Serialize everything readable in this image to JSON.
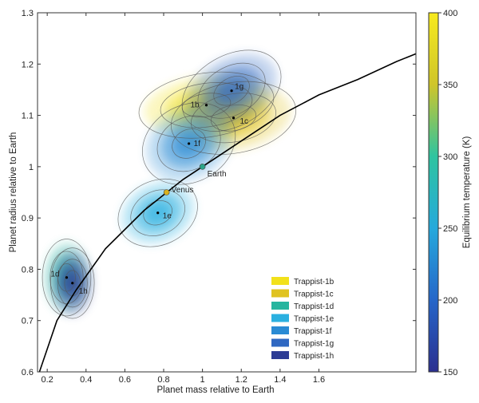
{
  "chart_data": {
    "type": "scatter",
    "xlabel": "Planet mass relative to Earth",
    "ylabel": "Planet radius relative to Earth",
    "xlim": [
      0.15,
      2.1
    ],
    "ylim": [
      0.6,
      1.3
    ],
    "xticks": [
      "0.2",
      "0.4",
      "0.6",
      "0.8",
      "1",
      "1.2",
      "1.4",
      "1.6"
    ],
    "xtick_values": [
      0.2,
      0.4,
      0.6,
      0.8,
      1.0,
      1.2,
      1.4,
      1.6
    ],
    "yticks": [
      "0.6",
      "0.7",
      "0.8",
      "0.9",
      "1",
      "1.1",
      "1.2",
      "1.3"
    ],
    "ytick_values": [
      0.6,
      0.7,
      0.8,
      0.9,
      1.0,
      1.1,
      1.2,
      1.3
    ],
    "colorbar": {
      "label": "Equilibrium temperature (K)",
      "range": [
        150,
        400
      ],
      "ticks": [
        "150",
        "200",
        "250",
        "300",
        "350",
        "400"
      ],
      "tick_values": [
        150,
        200,
        250,
        300,
        350,
        400
      ],
      "colors": [
        "#2b2f8f",
        "#2566c9",
        "#25a9dc",
        "#2ec4a0",
        "#cfc52a",
        "#f7ea1e"
      ]
    },
    "legend_position": "lower-right",
    "series": [
      {
        "name": "Trappist-1b",
        "label": "1b",
        "mass": 1.02,
        "radius": 1.12,
        "temperature": 400,
        "color": "#f2e11b",
        "sx": 0.28,
        "sy": 0.05,
        "tilt": 8
      },
      {
        "name": "Trappist-1c",
        "label": "1c",
        "mass": 1.16,
        "radius": 1.095,
        "temperature": 342,
        "color": "#e0c321",
        "sx": 0.26,
        "sy": 0.055,
        "tilt": 10
      },
      {
        "name": "Trappist-1d",
        "label": "1d",
        "mass": 0.3,
        "radius": 0.784,
        "temperature": 288,
        "color": "#26b59f",
        "sx": 0.1,
        "sy": 0.06,
        "tilt": 0
      },
      {
        "name": "Trappist-1e",
        "label": "1e",
        "mass": 0.77,
        "radius": 0.91,
        "temperature": 251,
        "color": "#2bb0e0",
        "sx": 0.17,
        "sy": 0.05,
        "tilt": 25
      },
      {
        "name": "Trappist-1f",
        "label": "1f",
        "mass": 0.93,
        "radius": 1.045,
        "temperature": 219,
        "color": "#2a8bd4",
        "sx": 0.2,
        "sy": 0.06,
        "tilt": 28
      },
      {
        "name": "Trappist-1g",
        "label": "1g",
        "mass": 1.15,
        "radius": 1.148,
        "temperature": 198,
        "color": "#2f68c2",
        "sx": 0.22,
        "sy": 0.055,
        "tilt": 30
      },
      {
        "name": "Trappist-1h",
        "label": "1h",
        "mass": 0.33,
        "radius": 0.773,
        "temperature": 168,
        "color": "#2d3c95",
        "sx": 0.09,
        "sy": 0.055,
        "tilt": 0
      }
    ],
    "reference_points": [
      {
        "label": "Earth",
        "mass": 1.0,
        "radius": 1.0,
        "color": "#2aa58a"
      },
      {
        "label": "Venus",
        "mass": 0.815,
        "radius": 0.95,
        "color": "#d8b21c"
      }
    ],
    "curve": {
      "mass": [
        0.16,
        0.25,
        0.35,
        0.5,
        0.7,
        0.9,
        1.0,
        1.2,
        1.4,
        1.6,
        1.8,
        2.0,
        2.1
      ],
      "radius": [
        0.6,
        0.7,
        0.76,
        0.84,
        0.915,
        0.975,
        1.0,
        1.05,
        1.1,
        1.14,
        1.17,
        1.205,
        1.22
      ]
    }
  }
}
